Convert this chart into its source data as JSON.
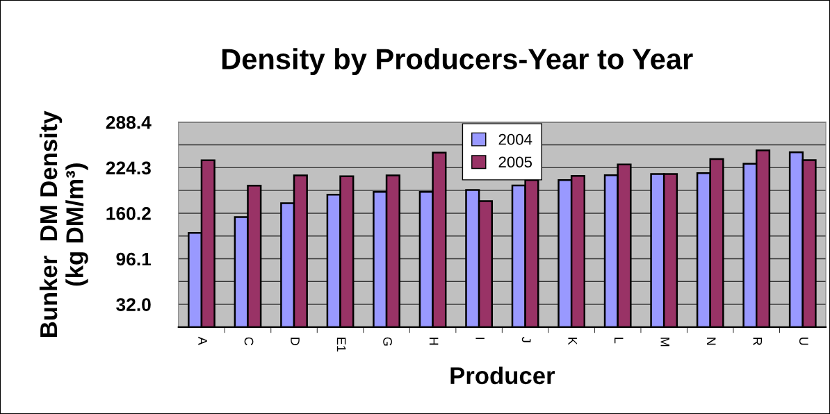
{
  "chart_data": {
    "type": "bar",
    "title": "Density by Producers-Year to Year",
    "xlabel": "Producer",
    "ylabel": "Bunker  DM Density\n(kg DM/m³)",
    "categories": [
      "A",
      "C",
      "D",
      "E1",
      "G",
      "H",
      "I",
      "J",
      "K",
      "L",
      "M",
      "N",
      "R",
      "U"
    ],
    "series": [
      {
        "name": "2004",
        "color": "#9999ff",
        "values": [
          132.5,
          154.9,
          174.4,
          186.4,
          190.3,
          190.3,
          192.9,
          199.3,
          206.8,
          213.6,
          215.3,
          216.7,
          229.9,
          245.9
        ]
      },
      {
        "name": "2005",
        "color": "#993366",
        "values": [
          234.8,
          199.1,
          213.4,
          212.1,
          213.4,
          245.5,
          177.2,
          206.8,
          212.6,
          228.9,
          215.3,
          236.4,
          248.6,
          235.0
        ]
      }
    ],
    "ylim": [
      0,
      288.4
    ],
    "yticks": [
      {
        "value": 0,
        "label": null
      },
      {
        "value": 32.0,
        "label": "32.0"
      },
      {
        "value": 64.1,
        "label": null
      },
      {
        "value": 96.1,
        "label": "96.1"
      },
      {
        "value": 128.2,
        "label": null
      },
      {
        "value": 160.2,
        "label": "160.2"
      },
      {
        "value": 192.3,
        "label": null
      },
      {
        "value": 224.3,
        "label": "224.3"
      },
      {
        "value": 256.4,
        "label": null
      },
      {
        "value": 288.4,
        "label": "288.4"
      }
    ],
    "grid": "y",
    "legend": "top"
  }
}
